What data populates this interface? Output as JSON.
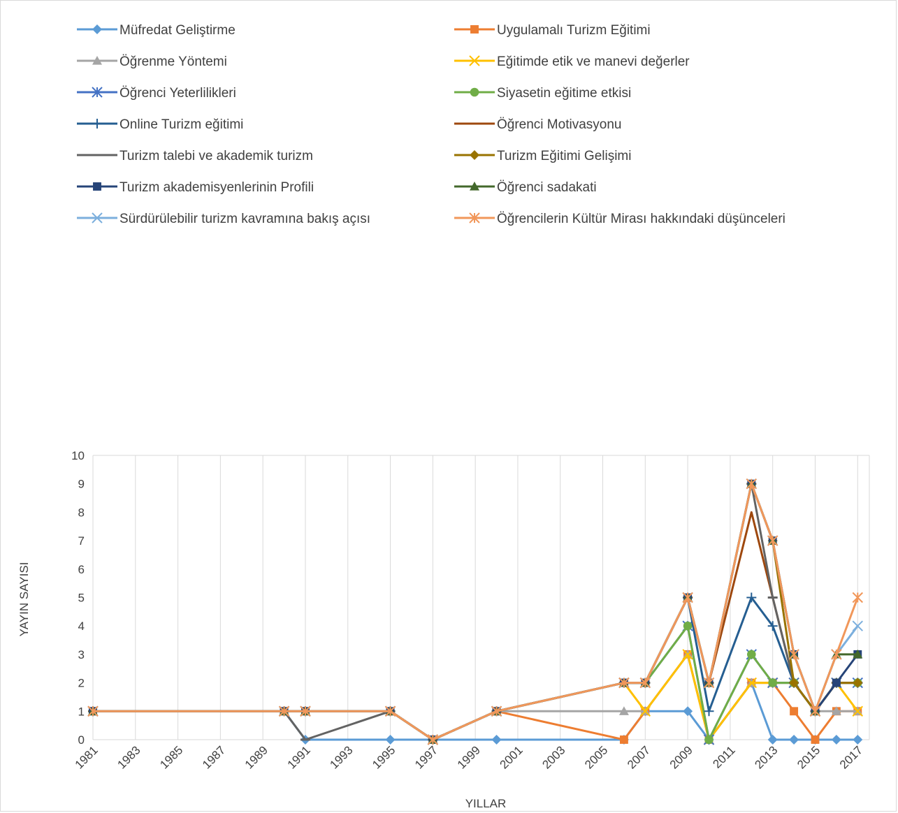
{
  "chart_data": {
    "type": "line",
    "title": "",
    "xlabel": "YILLAR",
    "ylabel": "YAYIN SAYISI",
    "ylim": [
      0,
      10
    ],
    "y_ticks": [
      "0",
      "1",
      "2",
      "3",
      "4",
      "5",
      "6",
      "7",
      "8",
      "9",
      "10"
    ],
    "x_tick_labels": [
      "1981",
      "1983",
      "1985",
      "1987",
      "1989",
      "1991",
      "1993",
      "1995",
      "1997",
      "1999",
      "2001",
      "2003",
      "2005",
      "2007",
      "2009",
      "2011",
      "2013",
      "2015",
      "2017"
    ],
    "x": [
      1981,
      1990,
      1991,
      1995,
      1997,
      2000,
      2006,
      2007,
      2009,
      2010,
      2012,
      2013,
      2014,
      2015,
      2016,
      2017
    ],
    "grid": "vertical",
    "legend": "top",
    "series": [
      {
        "name": "Müfredat Geliştirme",
        "color": "#5b9bd5",
        "marker": "diamond",
        "values": [
          1,
          1,
          0,
          0,
          0,
          0,
          0,
          1,
          1,
          0,
          2,
          0,
          0,
          0,
          0,
          0
        ]
      },
      {
        "name": "Uygulamalı Turizm Eğitimi",
        "color": "#ed7d31",
        "marker": "square",
        "values": [
          1,
          1,
          1,
          1,
          0,
          1,
          0,
          1,
          3,
          0,
          2,
          2,
          1,
          0,
          1,
          1
        ]
      },
      {
        "name": "Öğrenme Yöntemi",
        "color": "#a5a5a5",
        "marker": "triangle",
        "values": [
          1,
          1,
          1,
          1,
          0,
          1,
          1,
          1,
          3,
          0,
          2,
          2,
          2,
          1,
          1,
          1
        ]
      },
      {
        "name": "Eğitimde etik ve manevi değerler",
        "color": "#ffc000",
        "marker": "x",
        "values": [
          1,
          1,
          1,
          1,
          0,
          1,
          2,
          1,
          3,
          0,
          2,
          2,
          2,
          1,
          2,
          1
        ]
      },
      {
        "name": "Öğrenci Yeterlilikleri",
        "color": "#4472c4",
        "marker": "star",
        "values": [
          1,
          1,
          1,
          1,
          0,
          1,
          2,
          2,
          4,
          0,
          3,
          2,
          2,
          1,
          2,
          2
        ]
      },
      {
        "name": "Siyasetin eğitime etkisi",
        "color": "#70ad47",
        "marker": "circle",
        "values": [
          1,
          1,
          1,
          1,
          0,
          1,
          2,
          2,
          4,
          0,
          3,
          2,
          2,
          1,
          2,
          2
        ]
      },
      {
        "name": "Online Turizm eğitimi",
        "color": "#255e91",
        "marker": "plus",
        "values": [
          1,
          1,
          1,
          1,
          0,
          1,
          2,
          2,
          5,
          1,
          5,
          4,
          2,
          1,
          2,
          2
        ]
      },
      {
        "name": "Öğrenci Motivasyonu",
        "color": "#9e480e",
        "marker": "none",
        "values": [
          1,
          1,
          1,
          1,
          0,
          1,
          2,
          2,
          5,
          2,
          8,
          5,
          2,
          1,
          2,
          2
        ]
      },
      {
        "name": "Turizm talebi ve akademik turizm",
        "color": "#636363",
        "marker": "dash",
        "values": [
          1,
          1,
          0,
          1,
          0,
          1,
          2,
          2,
          5,
          2,
          9,
          5,
          2,
          1,
          2,
          2
        ]
      },
      {
        "name": "Turizm Eğitimi Gelişimi",
        "color": "#997300",
        "marker": "diamond",
        "values": [
          1,
          1,
          1,
          1,
          0,
          1,
          2,
          2,
          5,
          2,
          9,
          7,
          2,
          1,
          2,
          2
        ]
      },
      {
        "name": "Turizm akademisyenlerinin Profili",
        "color": "#264478",
        "marker": "square",
        "values": [
          1,
          1,
          1,
          1,
          0,
          1,
          2,
          2,
          5,
          2,
          9,
          7,
          3,
          1,
          2,
          3
        ]
      },
      {
        "name": "Öğrenci sadakati",
        "color": "#43682b",
        "marker": "triangle",
        "values": [
          1,
          1,
          1,
          1,
          0,
          1,
          2,
          2,
          5,
          2,
          9,
          7,
          3,
          1,
          3,
          3
        ]
      },
      {
        "name": "Sürdürülebilir turizm kavramına bakış açısı",
        "color": "#7cafdd",
        "marker": "x",
        "values": [
          1,
          1,
          1,
          1,
          0,
          1,
          2,
          2,
          5,
          2,
          9,
          7,
          3,
          1,
          3,
          4
        ]
      },
      {
        "name": "Öğrencilerin Kültür Mirası hakkındaki düşünceleri",
        "color": "#f1975a",
        "marker": "star",
        "values": [
          1,
          1,
          1,
          1,
          0,
          1,
          2,
          2,
          5,
          2,
          9,
          7,
          3,
          1,
          3,
          5
        ]
      }
    ]
  }
}
